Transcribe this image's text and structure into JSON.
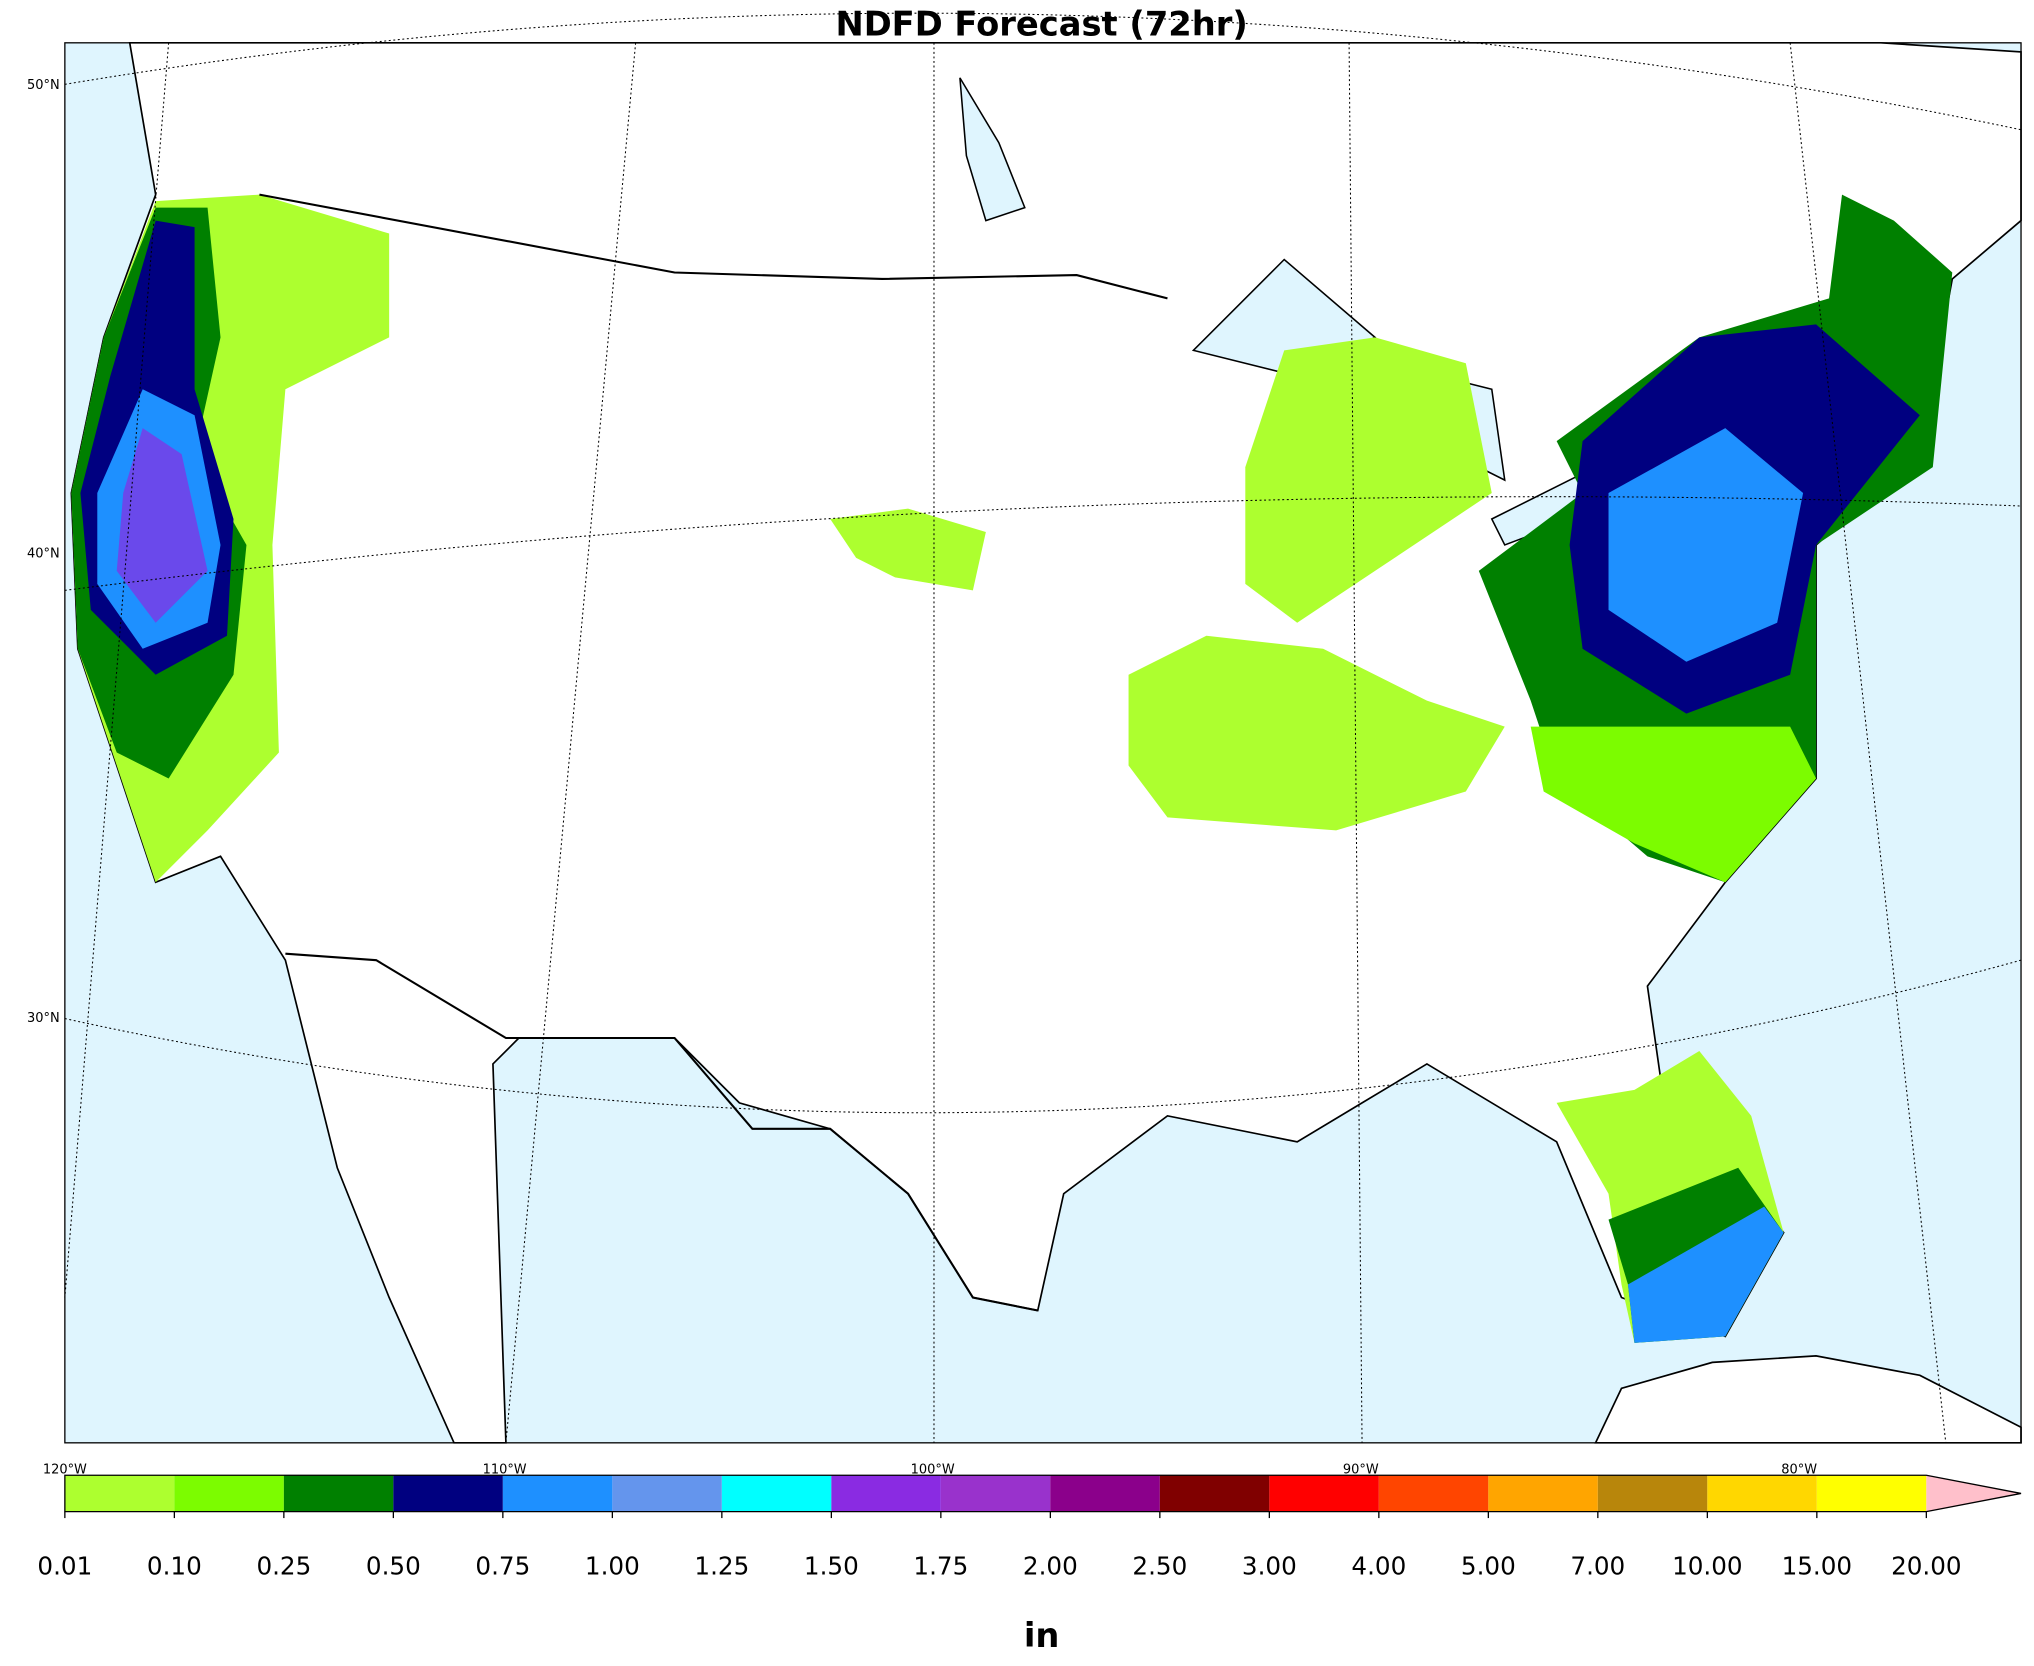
{
  "title": "NDFD Forecast (72hr)",
  "map": {
    "lat_labels": [
      "50°N",
      "40°N",
      "30°N"
    ],
    "lon_labels": [
      "120°W",
      "110°W",
      "100°W",
      "90°W",
      "80°W"
    ]
  },
  "colorbar": {
    "label": "in",
    "ticks": [
      0.01,
      {
        "value": 0.1,
        "label": "0.10"
      },
      {
        "value": 0.25,
        "label": "0.25"
      },
      {
        "value": 0.5,
        "label": "0.50"
      },
      {
        "value": 0.75,
        "label": "0.75"
      },
      {
        "value": 1,
        "label": "1.00"
      },
      {
        "value": 1.25,
        "label": "1.25"
      },
      {
        "value": 1.5,
        "label": "1.50"
      },
      {
        "value": 1.75,
        "label": "1.75"
      },
      {
        "value": 2,
        "label": "2.00"
      },
      {
        "value": 2.5,
        "label": "2.50"
      },
      {
        "value": 3,
        "label": "3.00"
      },
      {
        "value": 4,
        "label": "4.00"
      },
      {
        "value": 5,
        "label": "5.00"
      },
      {
        "value": 7,
        "label": "7.00"
      },
      {
        "value": 10,
        "label": "10.00"
      },
      {
        "value": 15,
        "label": "15.00"
      },
      {
        "value": 20,
        "label": "20.00"
      }
    ],
    "colors": [
      "#adff2f",
      "#7cfc00",
      "#008000",
      "#000080",
      "#1e90ff",
      "#6495ed",
      "#00ffff",
      "#8a2be2",
      "#9932cc",
      "#8b008b",
      "#800000",
      "#ff0000",
      "#ff4500",
      "#ffa500",
      "#b8860b",
      "#ffd700",
      "#ffff00"
    ],
    "extend_color": "#ffc0cb"
  }
}
